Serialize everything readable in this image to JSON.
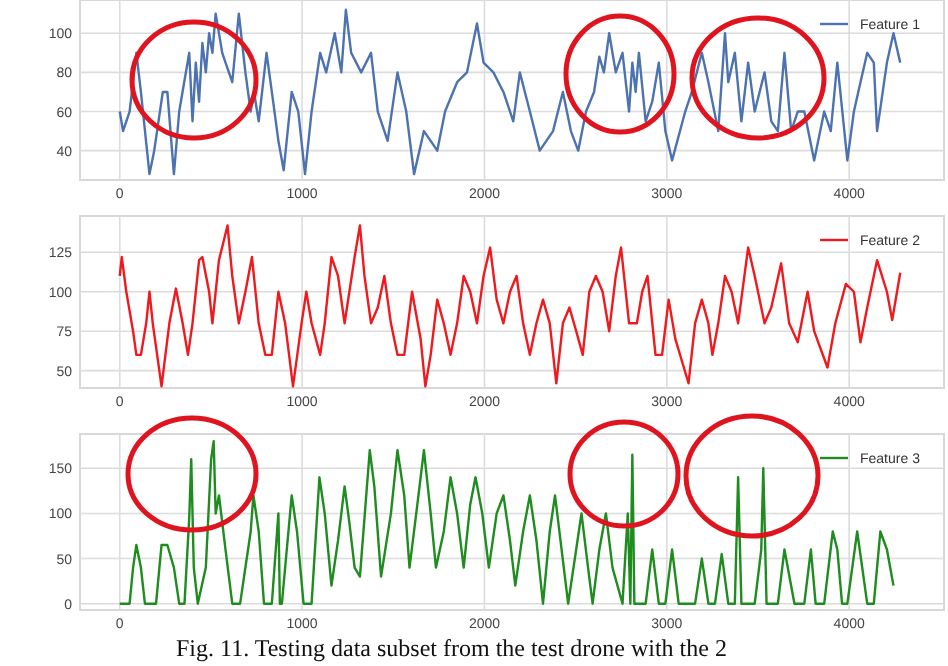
{
  "chart_data": [
    {
      "type": "line",
      "xlim": [
        -218,
        4520
      ],
      "xticks": [
        0,
        1000,
        2000,
        3000,
        4000
      ],
      "ylim": [
        25,
        117
      ],
      "yticks": [
        40,
        60,
        80,
        100
      ],
      "grid": true,
      "legend": "top right",
      "x": [
        0,
        18,
        54,
        91,
        116,
        163,
        189,
        236,
        261,
        297,
        326,
        381,
        399,
        417,
        435,
        453,
        472,
        490,
        508,
        526,
        562,
        580,
        617,
        653,
        689,
        718,
        736,
        762,
        805,
        834,
        870,
        899,
        943,
        979,
        1016,
        1052,
        1099,
        1132,
        1179,
        1215,
        1240,
        1269,
        1324,
        1378,
        1415,
        1469,
        1523,
        1571,
        1614,
        1668,
        1705,
        1741,
        1784,
        1850,
        1904,
        1959,
        1995,
        2049,
        2104,
        2158,
        2194,
        2249,
        2303,
        2376,
        2430,
        2474,
        2514,
        2557,
        2601,
        2630,
        2655,
        2684,
        2720,
        2757,
        2793,
        2811,
        2829,
        2847,
        2884,
        2920,
        2956,
        2992,
        3029,
        3101,
        3137,
        3192,
        3228,
        3282,
        3319,
        3337,
        3373,
        3409,
        3446,
        3482,
        3536,
        3573,
        3609,
        3645,
        3682,
        3718,
        3754,
        3808,
        3863,
        3899,
        3935,
        3990,
        4026,
        4062,
        4099,
        4135,
        4153,
        4207,
        4243,
        4280
      ],
      "series": [
        {
          "name": "Feature 1",
          "color": "#4c72b0",
          "values": [
            60,
            50,
            60,
            90,
            70,
            28,
            40,
            70,
            70,
            28,
            60,
            90,
            55,
            85,
            65,
            95,
            80,
            100,
            90,
            110,
            90,
            85,
            75,
            110,
            80,
            60,
            70,
            55,
            90,
            70,
            45,
            30,
            70,
            60,
            28,
            60,
            90,
            80,
            100,
            80,
            112,
            90,
            80,
            90,
            60,
            45,
            80,
            60,
            28,
            50,
            45,
            40,
            60,
            75,
            80,
            105,
            85,
            80,
            70,
            55,
            80,
            60,
            40,
            50,
            70,
            50,
            40,
            60,
            70,
            88,
            80,
            100,
            80,
            90,
            60,
            85,
            70,
            90,
            55,
            65,
            85,
            50,
            35,
            60,
            70,
            90,
            75,
            50,
            100,
            75,
            90,
            55,
            85,
            60,
            80,
            55,
            50,
            90,
            50,
            60,
            60,
            35,
            60,
            50,
            85,
            35,
            60,
            75,
            90,
            85,
            50,
            85,
            100,
            85
          ]
        }
      ]
    },
    {
      "type": "line",
      "xlim": [
        -218,
        4520
      ],
      "xticks": [
        0,
        1000,
        2000,
        3000,
        4000
      ],
      "ylim": [
        39,
        148
      ],
      "yticks": [
        50,
        75,
        100,
        125
      ],
      "grid": true,
      "legend": "top right",
      "x": [
        0,
        11,
        36,
        73,
        91,
        116,
        145,
        163,
        181,
        229,
        272,
        308,
        345,
        374,
        399,
        435,
        453,
        490,
        508,
        544,
        591,
        617,
        653,
        689,
        725,
        762,
        798,
        834,
        870,
        907,
        950,
        997,
        1023,
        1052,
        1099,
        1124,
        1161,
        1197,
        1233,
        1288,
        1317,
        1342,
        1378,
        1415,
        1451,
        1487,
        1523,
        1560,
        1603,
        1650,
        1676,
        1705,
        1741,
        1777,
        1814,
        1850,
        1886,
        1922,
        1959,
        1995,
        2031,
        2067,
        2104,
        2140,
        2176,
        2212,
        2249,
        2285,
        2321,
        2358,
        2394,
        2430,
        2466,
        2503,
        2539,
        2575,
        2611,
        2648,
        2684,
        2720,
        2749,
        2793,
        2836,
        2865,
        2894,
        2938,
        2974,
        3010,
        3047,
        3119,
        3155,
        3192,
        3228,
        3250,
        3282,
        3319,
        3355,
        3391,
        3446,
        3482,
        3536,
        3573,
        3627,
        3671,
        3718,
        3772,
        3808,
        3881,
        3924,
        3982,
        4026,
        4062,
        4099,
        4153,
        4207,
        4236,
        4280
      ],
      "series": [
        {
          "name": "Feature 2",
          "color": "#f0191e",
          "values": [
            110,
            122,
            100,
            75,
            60,
            60,
            80,
            100,
            80,
            40,
            80,
            102,
            80,
            60,
            80,
            120,
            122,
            100,
            80,
            120,
            142,
            110,
            80,
            100,
            122,
            80,
            60,
            60,
            100,
            80,
            40,
            80,
            100,
            80,
            60,
            80,
            122,
            110,
            80,
            122,
            142,
            110,
            80,
            90,
            110,
            80,
            60,
            60,
            100,
            70,
            40,
            60,
            95,
            80,
            60,
            80,
            110,
            100,
            80,
            110,
            128,
            95,
            80,
            100,
            110,
            80,
            60,
            80,
            95,
            80,
            42,
            80,
            90,
            75,
            60,
            100,
            110,
            100,
            75,
            110,
            128,
            80,
            80,
            100,
            110,
            60,
            60,
            95,
            70,
            42,
            80,
            95,
            80,
            60,
            80,
            110,
            100,
            80,
            128,
            110,
            80,
            90,
            118,
            80,
            68,
            100,
            75,
            52,
            80,
            105,
            100,
            68,
            90,
            120,
            100,
            82,
            112
          ]
        }
      ]
    },
    {
      "type": "line",
      "xlim": [
        -218,
        4520
      ],
      "xticks": [
        0,
        1000,
        2000,
        3000,
        4000
      ],
      "ylim": [
        -7,
        188
      ],
      "yticks": [
        0,
        50,
        100,
        150
      ],
      "grid": true,
      "legend": "top right",
      "x": [
        0,
        54,
        73,
        91,
        116,
        138,
        199,
        229,
        261,
        297,
        326,
        355,
        381,
        392,
        406,
        428,
        472,
        501,
        515,
        526,
        544,
        580,
        617,
        660,
        718,
        733,
        762,
        791,
        834,
        870,
        878,
        889,
        943,
        972,
        1008,
        1052,
        1095,
        1124,
        1161,
        1197,
        1233,
        1259,
        1288,
        1317,
        1371,
        1396,
        1433,
        1487,
        1523,
        1560,
        1589,
        1632,
        1668,
        1705,
        1734,
        1777,
        1814,
        1850,
        1886,
        1922,
        1951,
        1988,
        2024,
        2067,
        2104,
        2140,
        2169,
        2212,
        2249,
        2285,
        2321,
        2358,
        2387,
        2423,
        2459,
        2503,
        2532,
        2568,
        2593,
        2630,
        2666,
        2702,
        2757,
        2786,
        2800,
        2811,
        2822,
        2884,
        2920,
        2956,
        2992,
        3029,
        3065,
        3155,
        3192,
        3228,
        3264,
        3301,
        3337,
        3373,
        3391,
        3409,
        3482,
        3518,
        3529,
        3547,
        3609,
        3645,
        3700,
        3754,
        3790,
        3816,
        3863,
        3910,
        3935,
        3961,
        3990,
        4044,
        4099,
        4135,
        4171,
        4207,
        4243
      ],
      "annotations": [
        "Fig. 11. Testing data subset from the test drone with the 2"
      ],
      "series": [
        {
          "name": "Feature 3",
          "color": "#1f8c1f",
          "values": [
            0,
            0,
            40,
            65,
            40,
            0,
            0,
            65,
            65,
            40,
            0,
            0,
            95,
            160,
            40,
            0,
            40,
            160,
            180,
            100,
            120,
            60,
            0,
            0,
            80,
            120,
            80,
            0,
            0,
            100,
            0,
            0,
            120,
            80,
            0,
            0,
            140,
            100,
            20,
            70,
            130,
            90,
            40,
            30,
            170,
            130,
            30,
            100,
            170,
            120,
            40,
            110,
            170,
            100,
            40,
            80,
            140,
            100,
            40,
            110,
            140,
            100,
            40,
            100,
            120,
            70,
            20,
            80,
            120,
            70,
            0,
            80,
            120,
            60,
            0,
            60,
            100,
            40,
            0,
            60,
            100,
            40,
            0,
            100,
            0,
            165,
            0,
            0,
            60,
            0,
            0,
            60,
            0,
            0,
            50,
            0,
            0,
            55,
            0,
            0,
            140,
            0,
            0,
            60,
            150,
            0,
            0,
            60,
            0,
            0,
            60,
            0,
            0,
            80,
            60,
            0,
            0,
            80,
            0,
            0,
            80,
            60,
            20
          ]
        }
      ]
    }
  ]
}
